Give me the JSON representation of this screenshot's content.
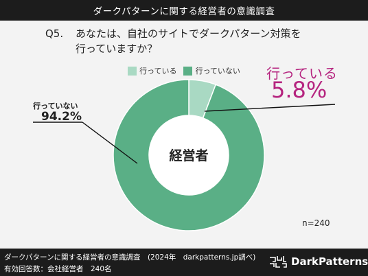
{
  "header": {
    "title": "ダークパターンに関する経営者の意識調査"
  },
  "question": {
    "label": "Q5.",
    "line1": "あなたは、自社のサイトでダークパターン対策を",
    "line2": "行っていますか？"
  },
  "legend": [
    {
      "label": "行っている",
      "color": "#a9d9c3"
    },
    {
      "label": "行っていない",
      "color": "#5aaf86"
    }
  ],
  "center_label": "経営者",
  "callouts": {
    "yes_label": "行っている",
    "yes_value": "5.8%",
    "no_label": "行っていない",
    "no_value": "94.2%"
  },
  "n_label": "n=240",
  "footer": {
    "line1": "ダークパターンに関する経営者の意識調査　(2024年　darkpatterns.jp調べ)",
    "line2": "有効回答数：会社経営者　240名",
    "brand": "DarkPatterns"
  },
  "chart_data": {
    "type": "pie",
    "donut": true,
    "categories": [
      "行っている",
      "行っていない"
    ],
    "values": [
      5.8,
      94.2
    ],
    "colors": [
      "#a9d9c3",
      "#5aaf86"
    ],
    "n": 240
  }
}
